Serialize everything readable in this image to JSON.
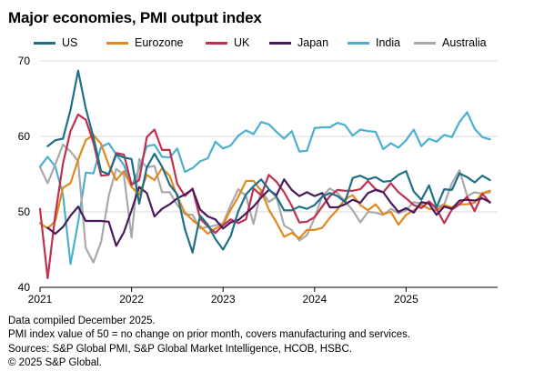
{
  "chart_data": {
    "type": "line",
    "title": "Major economies, PMI output index",
    "xlabel": "",
    "ylabel": "",
    "ylim": [
      40,
      70
    ],
    "yticks": [
      40,
      50,
      60,
      70
    ],
    "xlim": [
      2021.0,
      2026.0
    ],
    "xticks": [
      {
        "value": 2021,
        "label": "2021"
      },
      {
        "value": 2022,
        "label": "2022"
      },
      {
        "value": 2023,
        "label": "2023"
      },
      {
        "value": 2024,
        "label": "2024"
      },
      {
        "value": 2025,
        "label": "2025"
      }
    ],
    "grid": "horizontal",
    "legend_position": "top",
    "start": "2021-01",
    "end": "2025-12",
    "series": [
      {
        "name": "US",
        "color": "#1f6f86",
        "values": [
          58.7,
          59.5,
          59.7,
          63.5,
          68.7,
          63.7,
          59.9,
          55.4,
          55.0,
          57.6,
          57.2,
          57.0,
          51.1,
          55.9,
          57.7,
          56.0,
          53.6,
          52.3,
          47.7,
          44.6,
          49.5,
          48.3,
          46.4,
          45.0,
          46.8,
          50.1,
          52.3,
          53.4,
          54.3,
          53.0,
          52.0,
          50.2,
          50.2,
          50.7,
          50.4,
          50.9,
          52.0,
          52.5,
          52.1,
          51.3,
          54.5,
          54.8,
          54.3,
          54.6,
          54.0,
          54.1,
          54.9,
          55.4,
          52.7,
          51.6,
          53.5,
          50.6,
          53.0,
          52.9,
          55.1,
          54.6,
          53.9,
          54.8,
          54.2
        ],
        "start": "2021-02"
      },
      {
        "name": "Eurozone",
        "color": "#e08a1e",
        "values": [
          48.5,
          47.8,
          48.8,
          53.2,
          53.8,
          56.9,
          59.5,
          60.2,
          59.0,
          56.2,
          54.2,
          55.4,
          53.3,
          52.3,
          54.9,
          54.2,
          55.8,
          54.8,
          52.0,
          49.9,
          48.9,
          48.1,
          47.1,
          47.8,
          48.3,
          50.3,
          52.0,
          54.1,
          54.1,
          52.8,
          50.3,
          48.6,
          46.7,
          47.2,
          46.5,
          47.6,
          47.6,
          47.9,
          49.2,
          50.3,
          51.7,
          52.2,
          50.9,
          50.2,
          51.0,
          49.7,
          50.0,
          48.3,
          49.6,
          50.2,
          50.9,
          50.4,
          50.2,
          50.9,
          50.6,
          51.0,
          51.0,
          51.2,
          52.5,
          52.8
        ],
        "start": "2021-01"
      },
      {
        "name": "UK",
        "color": "#c0304f",
        "values": [
          50.4,
          41.2,
          49.6,
          56.4,
          60.7,
          62.9,
          62.2,
          59.2,
          54.8,
          54.9,
          57.8,
          57.6,
          53.6,
          54.2,
          59.9,
          60.9,
          58.2,
          58.2,
          53.7,
          52.1,
          53.1,
          49.1,
          48.1,
          47.2,
          48.2,
          49.0,
          48.5,
          49.0,
          53.1,
          52.2,
          54.9,
          54.0,
          52.6,
          50.8,
          48.6,
          48.7,
          49.3,
          50.7,
          52.1,
          52.9,
          52.8,
          52.8,
          53.0,
          54.1,
          53.0,
          52.6,
          53.8,
          52.6,
          51.8,
          50.9,
          50.5,
          51.4,
          50.4,
          48.5,
          50.3,
          51.0,
          52.0,
          50.1,
          52.4,
          51.2
        ],
        "start": "2021-01"
      },
      {
        "name": "Japan",
        "color": "#4a1a5c",
        "values": [
          47.9,
          47.1,
          48.0,
          49.5,
          50.7,
          48.8,
          48.8,
          48.8,
          48.7,
          45.5,
          47.3,
          50.2,
          53.3,
          52.5,
          49.4,
          50.4,
          51.0,
          51.8,
          52.3,
          53.0,
          50.3,
          49.4,
          49.0,
          47.8,
          48.6,
          48.9,
          49.8,
          50.7,
          51.9,
          52.9,
          52.2,
          54.3,
          52.9,
          52.1,
          52.6,
          52.1,
          52.5,
          50.6,
          50.6,
          51.0,
          51.6,
          51.2,
          52.5,
          52.9,
          52.6,
          51.2,
          50.0,
          50.5,
          49.9,
          51.3,
          51.1,
          49.6,
          50.7,
          50.4,
          51.5,
          51.6,
          51.5,
          51.8,
          51.3
        ],
        "start": "2021-02"
      },
      {
        "name": "India",
        "color": "#4bb0cf",
        "values": [
          56.0,
          57.3,
          56.0,
          52.3,
          43.1,
          48.6,
          55.2,
          55.1,
          58.6,
          59.1,
          57.6,
          56.2,
          53.4,
          55.7,
          58.7,
          58.9,
          57.3,
          57.2,
          58.4,
          55.3,
          55.8,
          56.7,
          57.1,
          59.3,
          58.4,
          58.8,
          60.1,
          60.8,
          60.3,
          61.9,
          61.6,
          60.6,
          59.7,
          60.7,
          58.0,
          58.1,
          61.1,
          61.2,
          61.2,
          61.8,
          61.5,
          60.1,
          60.9,
          60.7,
          60.6,
          58.3,
          59.1,
          58.5,
          59.5,
          60.9,
          58.7,
          59.7,
          59.3,
          60.2,
          59.9,
          61.9,
          63.2,
          61.0,
          59.9,
          59.6
        ],
        "start": "2021-01"
      },
      {
        "name": "Australia",
        "color": "#a9a9a9",
        "values": [
          55.9,
          53.8,
          56.3,
          58.9,
          58.0,
          56.7,
          45.2,
          43.3,
          46.0,
          52.1,
          55.7,
          54.9,
          46.6,
          57.0,
          55.9,
          56.1,
          52.6,
          52.6,
          50.9,
          49.7,
          49.6,
          47.8,
          48.0,
          48.2,
          48.5,
          50.9,
          53.0,
          52.1,
          48.4,
          52.9,
          51.3,
          52.0,
          48.2,
          47.6,
          46.2,
          46.9,
          49.2,
          52.1,
          53.1,
          52.5,
          51.4,
          50.2,
          48.6,
          50.0,
          49.9,
          49.6,
          50.4,
          49.8,
          50.2,
          51.3,
          51.1,
          51.3,
          50.6,
          51.0,
          53.8,
          55.5,
          52.1,
          52.6,
          52.4,
          52.6
        ],
        "start": "2021-01"
      }
    ]
  },
  "notes": [
    "Data compiled December 2025.",
    "PMI index value of 50 = no change on prior month, covers manufacturing and services.",
    "Sources: S&P Global PMI, S&P Global Market Intelligence, HCOB, HSBC.",
    "© 2025 S&P Global."
  ]
}
